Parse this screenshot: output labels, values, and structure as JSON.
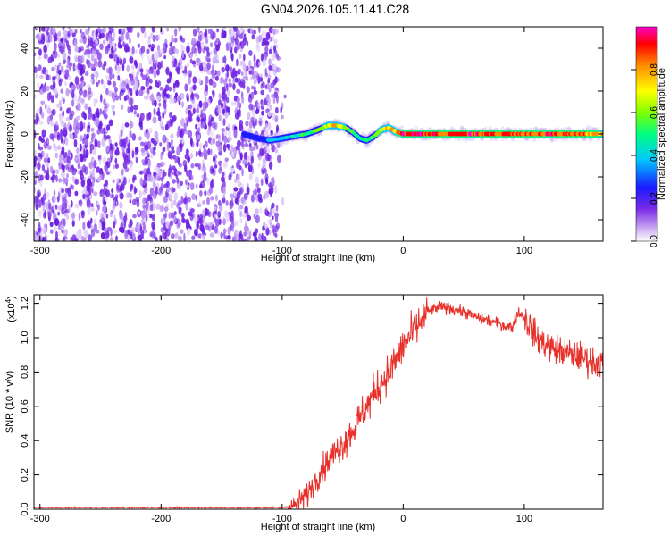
{
  "title": "GN04.2026.105.11.41.C28",
  "chart_data": [
    {
      "type": "heatmap",
      "xlabel": "Height of straight line (km)",
      "ylabel": "Frequency (Hz)",
      "xlim": [
        -305,
        165
      ],
      "ylim": [
        -50,
        50
      ],
      "xticks": [
        -300,
        -200,
        -100,
        0,
        100
      ],
      "yticks": [
        -40,
        -20,
        0,
        20,
        40
      ],
      "colorbar": {
        "label": "Normalized spectral amplitude",
        "range": [
          0,
          1
        ],
        "ticks": [
          "0.0",
          "0.2",
          "0.4",
          "0.6",
          "0.8"
        ],
        "colormap": [
          "#ffffff",
          "#c9a8f0",
          "#7a2be8",
          "#1a1aff",
          "#00c8ff",
          "#00ff80",
          "#7fff00",
          "#ffff00",
          "#ff8c00",
          "#ff0000",
          "#ff00c8"
        ]
      },
      "noise_region_x": [
        -305,
        -103
      ],
      "ridge": {
        "x": [
          -132,
          -120,
          -110,
          -100,
          -90,
          -80,
          -70,
          -62,
          -55,
          -48,
          -42,
          -36,
          -30,
          -24,
          -18,
          -12,
          -6,
          0,
          20,
          40,
          60,
          80,
          100,
          120,
          140,
          160,
          165
        ],
        "y": [
          0,
          -2,
          -3,
          -2,
          -1,
          0,
          2,
          4,
          4,
          3,
          1,
          -2,
          -3,
          -1,
          2,
          3,
          1,
          0,
          0,
          0,
          0,
          0,
          0,
          0,
          0,
          0,
          0
        ],
        "amplitude": [
          0.3,
          0.3,
          0.4,
          0.45,
          0.5,
          0.55,
          0.6,
          0.7,
          0.75,
          0.65,
          0.55,
          0.5,
          0.55,
          0.6,
          0.7,
          0.75,
          0.8,
          0.95,
          0.95,
          0.9,
          0.95,
          0.9,
          0.85,
          0.95,
          0.9,
          0.85,
          0.8
        ]
      }
    },
    {
      "type": "line",
      "xlabel": "Height of straight line (km)",
      "ylabel": "SNR (10 * v/v)",
      "y_multiplier_label": "(x10",
      "y_multiplier_exp": "4",
      "y_multiplier_close": ")",
      "xlim": [
        -305,
        165
      ],
      "ylim": [
        0,
        1.25
      ],
      "xticks": [
        -300,
        -200,
        -100,
        0,
        100
      ],
      "yticks": [
        "0.0",
        "0.2",
        "0.4",
        "0.6",
        "0.8",
        "1.0",
        "1.2"
      ],
      "color": "#e8302a",
      "series": [
        {
          "x": [
            -305,
            -120,
            -100,
            -90,
            -80,
            -70,
            -60,
            -50,
            -40,
            -30,
            -20,
            -10,
            0,
            10,
            20,
            30,
            40,
            50,
            60,
            70,
            80,
            90,
            95,
            100,
            110,
            120,
            130,
            140,
            150,
            160,
            165
          ],
          "y": [
            0.01,
            0.01,
            0.01,
            0.02,
            0.08,
            0.2,
            0.3,
            0.38,
            0.48,
            0.6,
            0.72,
            0.82,
            0.95,
            1.05,
            1.15,
            1.18,
            1.17,
            1.15,
            1.12,
            1.1,
            1.08,
            1.06,
            1.15,
            1.12,
            1.0,
            0.95,
            0.92,
            0.9,
            0.88,
            0.85,
            0.85
          ]
        }
      ]
    }
  ]
}
